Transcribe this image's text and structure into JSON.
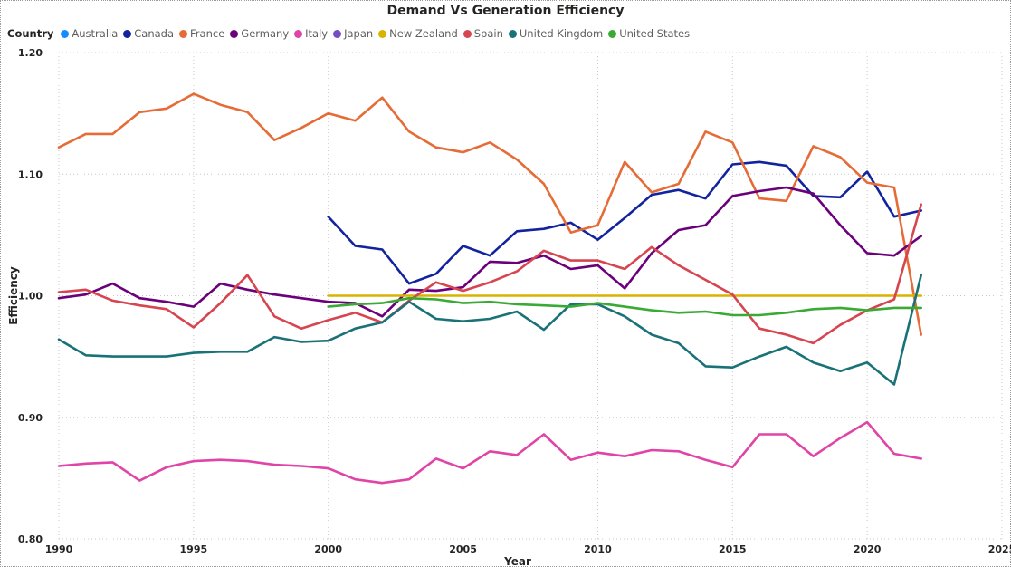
{
  "chart_data": {
    "type": "line",
    "title": "Demand Vs Generation Efficiency",
    "xlabel": "Year",
    "ylabel": "Efficiency",
    "legend_title": "Country",
    "legend_position": "top-left",
    "grid": true,
    "xlim": [
      1990,
      2025
    ],
    "ylim": [
      0.8,
      1.2
    ],
    "xticks": [
      "1990",
      "1995",
      "2000",
      "2005",
      "2010",
      "2015",
      "2020",
      "2025"
    ],
    "yticks": [
      "0.80",
      "0.90",
      "1.00",
      "1.10",
      "1.20"
    ],
    "series": [
      {
        "name": "Australia",
        "color": "#118DFF",
        "points": []
      },
      {
        "name": "Canada",
        "color": "#12239E",
        "points": [
          [
            2000,
            1.065
          ],
          [
            2001,
            1.041
          ],
          [
            2002,
            1.038
          ],
          [
            2003,
            1.01
          ],
          [
            2004,
            1.018
          ],
          [
            2005,
            1.041
          ],
          [
            2006,
            1.033
          ],
          [
            2007,
            1.053
          ],
          [
            2008,
            1.055
          ],
          [
            2009,
            1.06
          ],
          [
            2010,
            1.046
          ],
          [
            2011,
            1.064
          ],
          [
            2012,
            1.083
          ],
          [
            2013,
            1.087
          ],
          [
            2014,
            1.08
          ],
          [
            2015,
            1.108
          ],
          [
            2016,
            1.11
          ],
          [
            2017,
            1.107
          ],
          [
            2018,
            1.082
          ],
          [
            2019,
            1.081
          ],
          [
            2020,
            1.102
          ],
          [
            2021,
            1.065
          ],
          [
            2022,
            1.07
          ]
        ]
      },
      {
        "name": "France",
        "color": "#E66C37",
        "points": [
          [
            1990,
            1.122
          ],
          [
            1991,
            1.133
          ],
          [
            1992,
            1.133
          ],
          [
            1993,
            1.151
          ],
          [
            1994,
            1.154
          ],
          [
            1995,
            1.166
          ],
          [
            1996,
            1.157
          ],
          [
            1997,
            1.151
          ],
          [
            1998,
            1.128
          ],
          [
            1999,
            1.138
          ],
          [
            2000,
            1.15
          ],
          [
            2001,
            1.144
          ],
          [
            2002,
            1.163
          ],
          [
            2003,
            1.135
          ],
          [
            2004,
            1.122
          ],
          [
            2005,
            1.118
          ],
          [
            2006,
            1.126
          ],
          [
            2007,
            1.112
          ],
          [
            2008,
            1.092
          ],
          [
            2009,
            1.052
          ],
          [
            2010,
            1.058
          ],
          [
            2011,
            1.11
          ],
          [
            2012,
            1.085
          ],
          [
            2013,
            1.092
          ],
          [
            2014,
            1.135
          ],
          [
            2015,
            1.126
          ],
          [
            2016,
            1.08
          ],
          [
            2017,
            1.078
          ],
          [
            2018,
            1.123
          ],
          [
            2019,
            1.114
          ],
          [
            2020,
            1.093
          ],
          [
            2021,
            1.089
          ],
          [
            2022,
            0.968
          ]
        ]
      },
      {
        "name": "Germany",
        "color": "#6B007B",
        "points": [
          [
            1990,
            0.998
          ],
          [
            1991,
            1.001
          ],
          [
            1992,
            1.01
          ],
          [
            1993,
            0.998
          ],
          [
            1994,
            0.995
          ],
          [
            1995,
            0.991
          ],
          [
            1996,
            1.01
          ],
          [
            1997,
            1.005
          ],
          [
            1998,
            1.001
          ],
          [
            1999,
            0.998
          ],
          [
            2000,
            0.995
          ],
          [
            2001,
            0.994
          ],
          [
            2002,
            0.983
          ],
          [
            2003,
            1.005
          ],
          [
            2004,
            1.004
          ],
          [
            2005,
            1.007
          ],
          [
            2006,
            1.028
          ],
          [
            2007,
            1.027
          ],
          [
            2008,
            1.033
          ],
          [
            2009,
            1.022
          ],
          [
            2010,
            1.025
          ],
          [
            2011,
            1.006
          ],
          [
            2012,
            1.035
          ],
          [
            2013,
            1.054
          ],
          [
            2014,
            1.058
          ],
          [
            2015,
            1.082
          ],
          [
            2016,
            1.086
          ],
          [
            2017,
            1.089
          ],
          [
            2018,
            1.084
          ],
          [
            2019,
            1.058
          ],
          [
            2020,
            1.035
          ],
          [
            2021,
            1.033
          ],
          [
            2022,
            1.049
          ]
        ]
      },
      {
        "name": "Italy",
        "color": "#E044A7",
        "points": [
          [
            1990,
            0.86
          ],
          [
            1991,
            0.862
          ],
          [
            1992,
            0.863
          ],
          [
            1993,
            0.848
          ],
          [
            1994,
            0.859
          ],
          [
            1995,
            0.864
          ],
          [
            1996,
            0.865
          ],
          [
            1997,
            0.864
          ],
          [
            1998,
            0.861
          ],
          [
            1999,
            0.86
          ],
          [
            2000,
            0.858
          ],
          [
            2001,
            0.849
          ],
          [
            2002,
            0.846
          ],
          [
            2003,
            0.849
          ],
          [
            2004,
            0.866
          ],
          [
            2005,
            0.858
          ],
          [
            2006,
            0.872
          ],
          [
            2007,
            0.869
          ],
          [
            2008,
            0.886
          ],
          [
            2009,
            0.865
          ],
          [
            2010,
            0.871
          ],
          [
            2011,
            0.868
          ],
          [
            2012,
            0.873
          ],
          [
            2013,
            0.872
          ],
          [
            2014,
            0.865
          ],
          [
            2015,
            0.859
          ],
          [
            2016,
            0.886
          ],
          [
            2017,
            0.886
          ],
          [
            2018,
            0.868
          ],
          [
            2019,
            0.883
          ],
          [
            2020,
            0.896
          ],
          [
            2021,
            0.87
          ],
          [
            2022,
            0.866
          ]
        ]
      },
      {
        "name": "Japan",
        "color": "#744EC2",
        "points": []
      },
      {
        "name": "New Zealand",
        "color": "#D9B300",
        "points": [
          [
            2000,
            1.0
          ],
          [
            2001,
            1.0
          ],
          [
            2002,
            1.0
          ],
          [
            2003,
            1.0
          ],
          [
            2004,
            1.0
          ],
          [
            2005,
            1.0
          ],
          [
            2006,
            1.0
          ],
          [
            2007,
            1.0
          ],
          [
            2008,
            1.0
          ],
          [
            2009,
            1.0
          ],
          [
            2010,
            1.0
          ],
          [
            2011,
            1.0
          ],
          [
            2012,
            1.0
          ],
          [
            2013,
            1.0
          ],
          [
            2014,
            1.0
          ],
          [
            2015,
            1.0
          ],
          [
            2016,
            1.0
          ],
          [
            2017,
            1.0
          ],
          [
            2018,
            1.0
          ],
          [
            2019,
            1.0
          ],
          [
            2020,
            1.0
          ],
          [
            2021,
            1.0
          ],
          [
            2022,
            1.0
          ]
        ]
      },
      {
        "name": "Spain",
        "color": "#D64550",
        "points": [
          [
            1990,
            1.003
          ],
          [
            1991,
            1.005
          ],
          [
            1992,
            0.996
          ],
          [
            1993,
            0.992
          ],
          [
            1994,
            0.989
          ],
          [
            1995,
            0.974
          ],
          [
            1996,
            0.994
          ],
          [
            1997,
            1.017
          ],
          [
            1998,
            0.983
          ],
          [
            1999,
            0.973
          ],
          [
            2000,
            0.98
          ],
          [
            2001,
            0.986
          ],
          [
            2002,
            0.978
          ],
          [
            2003,
            0.996
          ],
          [
            2004,
            1.011
          ],
          [
            2005,
            1.004
          ],
          [
            2006,
            1.011
          ],
          [
            2007,
            1.02
          ],
          [
            2008,
            1.037
          ],
          [
            2009,
            1.029
          ],
          [
            2010,
            1.029
          ],
          [
            2011,
            1.022
          ],
          [
            2012,
            1.04
          ],
          [
            2013,
            1.025
          ],
          [
            2014,
            1.013
          ],
          [
            2015,
            1.001
          ],
          [
            2016,
            0.973
          ],
          [
            2017,
            0.968
          ],
          [
            2018,
            0.961
          ],
          [
            2019,
            0.976
          ],
          [
            2020,
            0.988
          ],
          [
            2021,
            0.997
          ],
          [
            2022,
            1.075
          ]
        ]
      },
      {
        "name": "United Kingdom",
        "color": "#197278",
        "points": [
          [
            1990,
            0.964
          ],
          [
            1991,
            0.951
          ],
          [
            1992,
            0.95
          ],
          [
            1993,
            0.95
          ],
          [
            1994,
            0.95
          ],
          [
            1995,
            0.953
          ],
          [
            1996,
            0.954
          ],
          [
            1997,
            0.954
          ],
          [
            1998,
            0.966
          ],
          [
            1999,
            0.962
          ],
          [
            2000,
            0.963
          ],
          [
            2001,
            0.973
          ],
          [
            2002,
            0.978
          ],
          [
            2003,
            0.995
          ],
          [
            2004,
            0.981
          ],
          [
            2005,
            0.979
          ],
          [
            2006,
            0.981
          ],
          [
            2007,
            0.987
          ],
          [
            2008,
            0.972
          ],
          [
            2009,
            0.993
          ],
          [
            2010,
            0.993
          ],
          [
            2011,
            0.983
          ],
          [
            2012,
            0.968
          ],
          [
            2013,
            0.961
          ],
          [
            2014,
            0.942
          ],
          [
            2015,
            0.941
          ],
          [
            2016,
            0.95
          ],
          [
            2017,
            0.958
          ],
          [
            2018,
            0.945
          ],
          [
            2019,
            0.938
          ],
          [
            2020,
            0.945
          ],
          [
            2021,
            0.927
          ],
          [
            2022,
            1.017
          ]
        ]
      },
      {
        "name": "United States",
        "color": "#3AAA35",
        "points": [
          [
            2000,
            0.991
          ],
          [
            2001,
            0.993
          ],
          [
            2002,
            0.994
          ],
          [
            2003,
            0.998
          ],
          [
            2004,
            0.997
          ],
          [
            2005,
            0.994
          ],
          [
            2006,
            0.995
          ],
          [
            2007,
            0.993
          ],
          [
            2008,
            0.992
          ],
          [
            2009,
            0.991
          ],
          [
            2010,
            0.994
          ],
          [
            2011,
            0.991
          ],
          [
            2012,
            0.988
          ],
          [
            2013,
            0.986
          ],
          [
            2014,
            0.987
          ],
          [
            2015,
            0.984
          ],
          [
            2016,
            0.984
          ],
          [
            2017,
            0.986
          ],
          [
            2018,
            0.989
          ],
          [
            2019,
            0.99
          ],
          [
            2020,
            0.988
          ],
          [
            2021,
            0.99
          ],
          [
            2022,
            0.99
          ]
        ]
      }
    ]
  }
}
